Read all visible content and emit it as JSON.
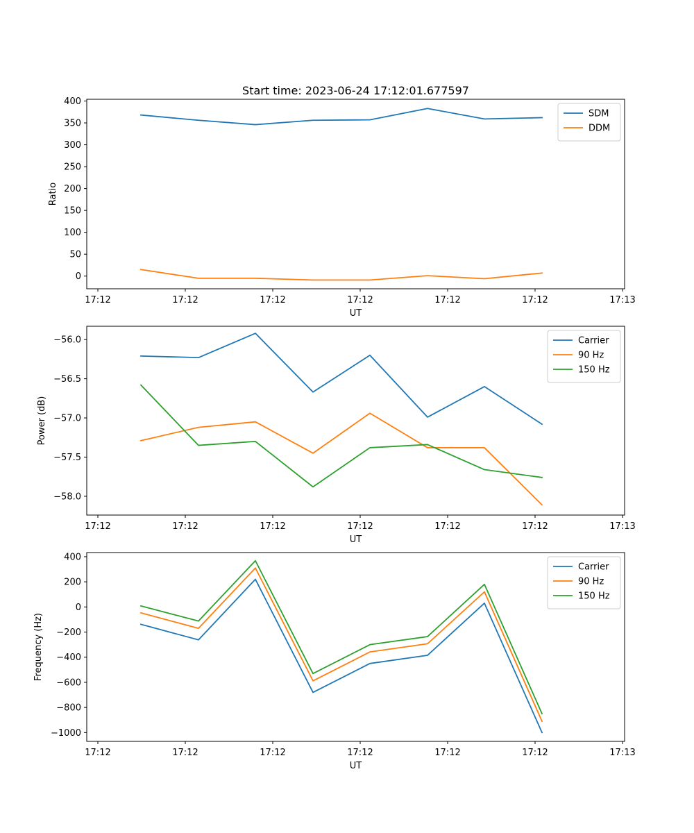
{
  "title": "Start time: 2023-06-24 17:12:01.677597",
  "chart_data": [
    {
      "type": "line",
      "xlabel": "UT",
      "ylabel": "Ratio",
      "x_ticks": [
        "17:12",
        "17:12",
        "17:12",
        "17:12",
        "17:12",
        "17:12",
        "17:13"
      ],
      "yticks": [
        0,
        50,
        100,
        150,
        200,
        250,
        300,
        350,
        400
      ],
      "ylim": [
        -29,
        404
      ],
      "legend": "upper right",
      "grid": false,
      "series": [
        {
          "name": "SDM",
          "color": "#1f77b4",
          "values": [
            368,
            356,
            346,
            356,
            357,
            383,
            359,
            362
          ]
        },
        {
          "name": "DDM",
          "color": "#ff7f0e",
          "values": [
            15,
            -5,
            -5,
            -9,
            -9,
            1,
            -6,
            7
          ]
        }
      ]
    },
    {
      "type": "line",
      "xlabel": "UT",
      "ylabel": "Power (dB)",
      "x_ticks": [
        "17:12",
        "17:12",
        "17:12",
        "17:12",
        "17:12",
        "17:12",
        "17:13"
      ],
      "yticks": [
        "-56.0",
        "-56.5",
        "-57.0",
        "-57.5",
        "-58.0"
      ],
      "ylim": [
        -58.24,
        -55.83
      ],
      "legend": "upper right",
      "grid": false,
      "series": [
        {
          "name": "Carrier",
          "color": "#1f77b4",
          "values": [
            -56.21,
            -56.23,
            -55.92,
            -56.67,
            -56.2,
            -56.99,
            -56.6,
            -57.08
          ]
        },
        {
          "name": "90 Hz",
          "color": "#ff7f0e",
          "values": [
            -57.29,
            -57.12,
            -57.05,
            -57.45,
            -56.94,
            -57.38,
            -57.38,
            -58.11
          ]
        },
        {
          "name": "150 Hz",
          "color": "#2ca02c",
          "values": [
            -56.58,
            -57.35,
            -57.3,
            -57.88,
            -57.38,
            -57.34,
            -57.66,
            -57.76
          ]
        }
      ]
    },
    {
      "type": "line",
      "xlabel": "UT",
      "ylabel": "Frequency (Hz)",
      "x_ticks": [
        "17:12",
        "17:12",
        "17:12",
        "17:12",
        "17:12",
        "17:12",
        "17:13"
      ],
      "yticks": [
        400,
        200,
        0,
        -200,
        -400,
        -600,
        -800,
        -1000
      ],
      "ylim": [
        -1070,
        433
      ],
      "legend": "upper right",
      "grid": false,
      "series": [
        {
          "name": "Carrier",
          "color": "#1f77b4",
          "values": [
            -138,
            -262,
            220,
            -680,
            -450,
            -385,
            30,
            -1000
          ]
        },
        {
          "name": "90 Hz",
          "color": "#ff7f0e",
          "values": [
            -47,
            -170,
            310,
            -588,
            -358,
            -293,
            120,
            -910
          ]
        },
        {
          "name": "150 Hz",
          "color": "#2ca02c",
          "values": [
            8,
            -112,
            368,
            -530,
            -300,
            -236,
            180,
            -850
          ]
        }
      ]
    }
  ]
}
